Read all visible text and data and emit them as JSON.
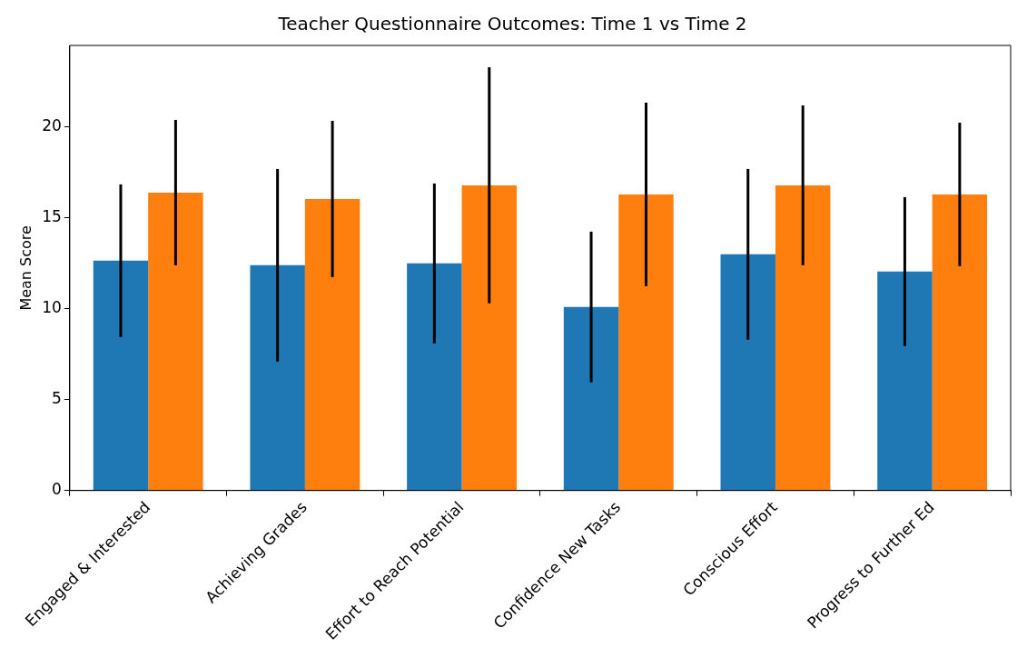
{
  "chart_data": {
    "type": "bar",
    "title": "Teacher Questionnaire Outcomes: Time 1 vs Time 2",
    "ylabel": "Mean Score",
    "categories": [
      "Engaged & Interested",
      "Achieving Grades",
      "Effort to Reach Potential",
      "Confidence New Tasks",
      "Conscious Effort",
      "Progress to Further Ed"
    ],
    "series": [
      {
        "color": "#1f77b4",
        "values": [
          12.65,
          12.4,
          12.5,
          10.1,
          13.0,
          12.05
        ],
        "errors": [
          4.2,
          5.3,
          4.4,
          4.15,
          4.7,
          4.1
        ]
      },
      {
        "color": "#ff7f0e",
        "values": [
          16.4,
          16.05,
          16.8,
          16.3,
          16.8,
          16.3
        ],
        "errors": [
          4.0,
          4.3,
          6.5,
          5.05,
          4.4,
          3.95
        ]
      }
    ],
    "ylim": [
      0,
      24.5
    ],
    "yticks": [
      0,
      5,
      10,
      15,
      20
    ],
    "grid": false,
    "legend": false
  }
}
